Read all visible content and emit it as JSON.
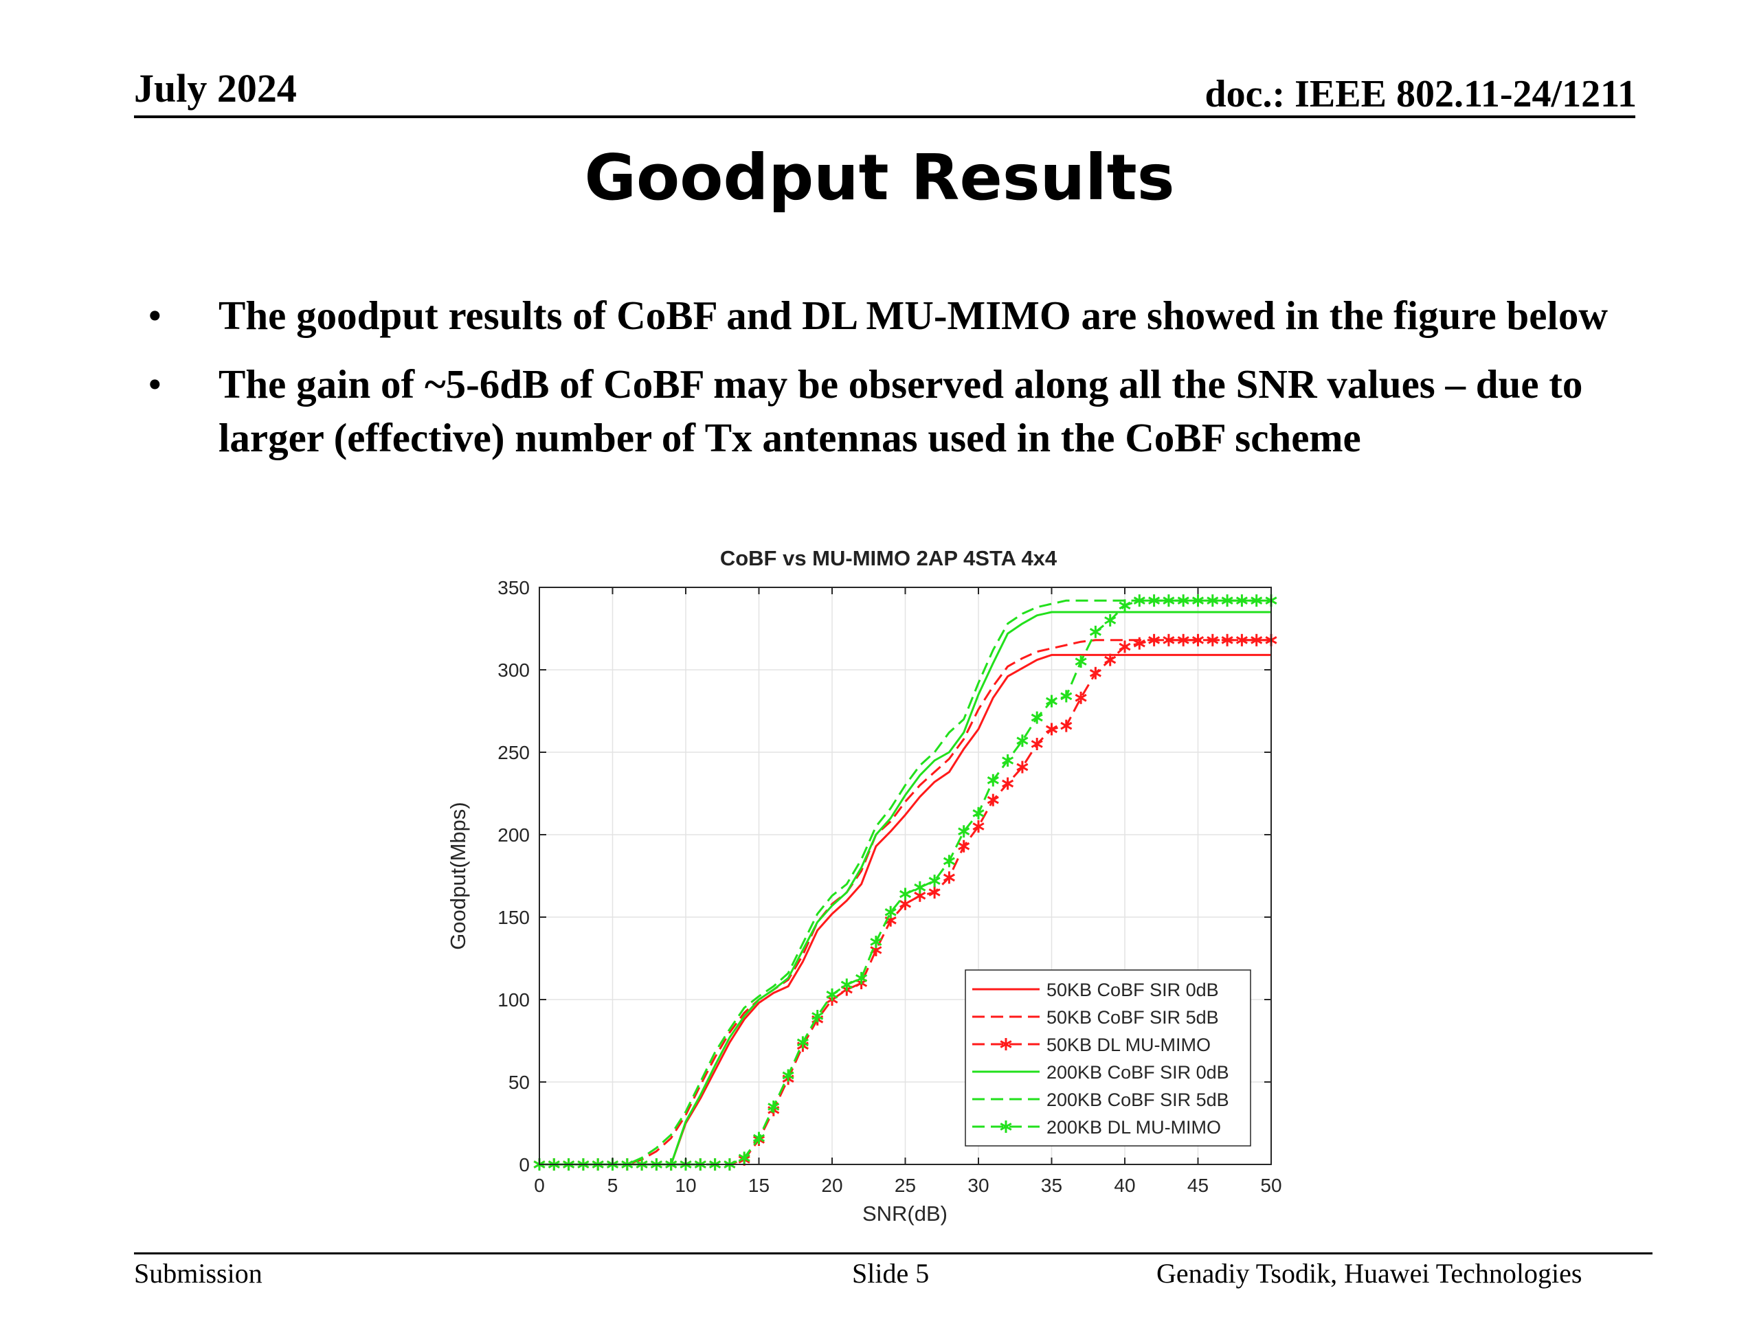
{
  "header": {
    "date": "July 2024",
    "doc": "doc.: IEEE 802.11-24/1211"
  },
  "title": "Goodput Results",
  "bullets": [
    "The goodput results of CoBF and DL MU-MIMO are showed in the figure below",
    "The gain of ~5-6dB of CoBF may be observed along all the SNR values – due to larger (effective) number of Tx antennas used in the CoBF scheme"
  ],
  "footer": {
    "left": "Submission",
    "center": "Slide 5",
    "right": "Genadiy Tsodik, Huawei Technologies"
  },
  "chart_data": {
    "type": "line",
    "title": "CoBF vs MU-MIMO 2AP 4STA 4x4",
    "xlabel": "SNR(dB)",
    "ylabel": "Goodput(Mbps)",
    "xlim": [
      0,
      50
    ],
    "ylim": [
      0,
      350
    ],
    "xticks": [
      0,
      5,
      10,
      15,
      20,
      25,
      30,
      35,
      40,
      45,
      50
    ],
    "yticks": [
      0,
      50,
      100,
      150,
      200,
      250,
      300,
      350
    ],
    "grid": true,
    "legend_position": "bottom-right",
    "series": [
      {
        "name": "50KB CoBF SIR 0dB",
        "color": "#ff1a1a",
        "style": "solid",
        "marker": "none",
        "x": [
          0,
          9,
          10,
          11,
          12,
          13,
          14,
          15,
          16,
          17,
          18,
          19,
          20,
          21,
          22,
          23,
          24,
          25,
          26,
          27,
          28,
          29,
          30,
          31,
          32,
          33,
          34,
          35,
          36,
          37,
          38,
          39,
          40,
          50
        ],
        "y": [
          0,
          0,
          25,
          40,
          57,
          74,
          88,
          98,
          104,
          108,
          123,
          142,
          152,
          160,
          170,
          193,
          202,
          212,
          223,
          232,
          238,
          252,
          264,
          283,
          296,
          301,
          306,
          309,
          309,
          309,
          309,
          309,
          309,
          309
        ]
      },
      {
        "name": "50KB CoBF SIR 5dB",
        "color": "#ff1a1a",
        "style": "dashed",
        "marker": "none",
        "x": [
          0,
          6,
          7,
          8,
          9,
          10,
          11,
          12,
          13,
          14,
          15,
          16,
          17,
          18,
          19,
          20,
          21,
          22,
          23,
          24,
          25,
          26,
          27,
          28,
          29,
          30,
          31,
          32,
          33,
          34,
          35,
          36,
          37,
          38,
          39,
          40,
          50
        ],
        "y": [
          0,
          0,
          3,
          8,
          16,
          30,
          48,
          65,
          80,
          92,
          100,
          106,
          112,
          127,
          147,
          158,
          165,
          178,
          200,
          208,
          220,
          230,
          238,
          246,
          258,
          276,
          290,
          302,
          307,
          311,
          313,
          315,
          317,
          318,
          318,
          318,
          318
        ]
      },
      {
        "name": "50KB DL MU-MIMO",
        "color": "#ff1a1a",
        "style": "dashed",
        "marker": "star",
        "x": [
          0,
          1,
          2,
          3,
          4,
          5,
          6,
          7,
          8,
          9,
          10,
          11,
          12,
          13,
          14,
          15,
          16,
          17,
          18,
          19,
          20,
          21,
          22,
          23,
          24,
          25,
          26,
          27,
          28,
          29,
          30,
          31,
          32,
          33,
          34,
          35,
          36,
          37,
          38,
          39,
          40,
          41,
          42,
          43,
          44,
          45,
          46,
          47,
          48,
          49,
          50
        ],
        "y": [
          0,
          0,
          0,
          0,
          0,
          0,
          0,
          0,
          0,
          0,
          0,
          0,
          0,
          0,
          3,
          15,
          33,
          52,
          72,
          88,
          100,
          106,
          110,
          130,
          148,
          158,
          163,
          165,
          174,
          193,
          205,
          221,
          231,
          241,
          255,
          264,
          266,
          283,
          298,
          306,
          314,
          316,
          318,
          318,
          318,
          318,
          318,
          318,
          318,
          318,
          318
        ]
      },
      {
        "name": "200KB CoBF SIR 0dB",
        "color": "#22e01c",
        "style": "solid",
        "marker": "none",
        "x": [
          0,
          9,
          10,
          11,
          12,
          13,
          14,
          15,
          16,
          17,
          18,
          19,
          20,
          21,
          22,
          23,
          24,
          25,
          26,
          27,
          28,
          29,
          30,
          31,
          32,
          33,
          34,
          35,
          36,
          37,
          38,
          39,
          40,
          50
        ],
        "y": [
          0,
          0,
          26,
          42,
          60,
          77,
          90,
          100,
          106,
          113,
          130,
          147,
          157,
          165,
          180,
          200,
          210,
          224,
          236,
          245,
          250,
          262,
          285,
          304,
          322,
          328,
          333,
          335,
          335,
          335,
          335,
          335,
          335,
          335
        ]
      },
      {
        "name": "200KB CoBF SIR 5dB",
        "color": "#22e01c",
        "style": "dashed",
        "marker": "none",
        "x": [
          0,
          6,
          7,
          8,
          9,
          10,
          11,
          12,
          13,
          14,
          15,
          16,
          17,
          18,
          19,
          20,
          21,
          22,
          23,
          24,
          25,
          26,
          27,
          28,
          29,
          30,
          31,
          32,
          33,
          34,
          35,
          36,
          37,
          38,
          39,
          40,
          50
        ],
        "y": [
          0,
          0,
          4,
          10,
          18,
          32,
          50,
          68,
          82,
          95,
          102,
          108,
          116,
          134,
          152,
          163,
          170,
          185,
          205,
          216,
          230,
          242,
          250,
          262,
          270,
          292,
          312,
          328,
          334,
          338,
          340,
          342,
          342,
          342,
          342,
          342,
          342
        ]
      },
      {
        "name": "200KB DL MU-MIMO",
        "color": "#22e01c",
        "style": "dashed",
        "marker": "star",
        "x": [
          0,
          1,
          2,
          3,
          4,
          5,
          6,
          7,
          8,
          9,
          10,
          11,
          12,
          13,
          14,
          15,
          16,
          17,
          18,
          19,
          20,
          21,
          22,
          23,
          24,
          25,
          26,
          27,
          28,
          29,
          30,
          31,
          32,
          33,
          34,
          35,
          36,
          37,
          38,
          39,
          40,
          41,
          42,
          43,
          44,
          45,
          46,
          47,
          48,
          49,
          50
        ],
        "y": [
          0,
          0,
          0,
          0,
          0,
          0,
          0,
          0,
          0,
          0,
          0,
          0,
          0,
          0,
          4,
          16,
          35,
          54,
          74,
          90,
          103,
          109,
          113,
          135,
          153,
          164,
          168,
          172,
          184,
          202,
          213,
          233,
          245,
          257,
          271,
          281,
          284,
          305,
          323,
          330,
          339,
          342,
          342,
          342,
          342,
          342,
          342,
          342,
          342,
          342,
          342
        ]
      }
    ]
  }
}
